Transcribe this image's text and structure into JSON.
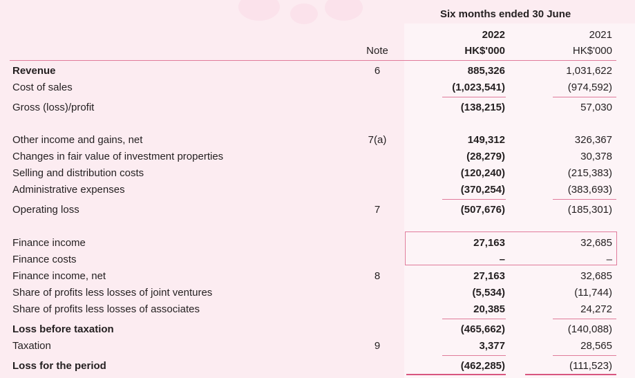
{
  "header": {
    "period": "Six months ended 30 June",
    "note_label": "Note",
    "col_2022_year": "2022",
    "col_2022_unit": "HK$'000",
    "col_2021_year": "2021",
    "col_2021_unit": "HK$'000"
  },
  "rows": [
    {
      "label": "Revenue",
      "note": "6",
      "v2022": "885,326",
      "v2021": "1,031,622"
    },
    {
      "label": "Cost of sales",
      "note": "",
      "v2022": "(1,023,541)",
      "v2021": "(974,592)"
    },
    {
      "label": "Gross (loss)/profit",
      "note": "",
      "v2022": "(138,215)",
      "v2021": "57,030"
    },
    {
      "label": "Other income and gains, net",
      "note": "7(a)",
      "v2022": "149,312",
      "v2021": "326,367"
    },
    {
      "label": "Changes in fair value of investment properties",
      "note": "",
      "v2022": "(28,279)",
      "v2021": "30,378"
    },
    {
      "label": "Selling and distribution costs",
      "note": "",
      "v2022": "(120,240)",
      "v2021": "(215,383)"
    },
    {
      "label": "Administrative expenses",
      "note": "",
      "v2022": "(370,254)",
      "v2021": "(383,693)"
    },
    {
      "label": "Operating loss",
      "note": "7",
      "v2022": "(507,676)",
      "v2021": "(185,301)"
    },
    {
      "label": "Finance income",
      "note": "",
      "v2022": "27,163",
      "v2021": "32,685"
    },
    {
      "label": "Finance costs",
      "note": "",
      "v2022": "–",
      "v2021": "–"
    },
    {
      "label": "Finance income, net",
      "note": "8",
      "v2022": "27,163",
      "v2021": "32,685"
    },
    {
      "label": "Share of profits less losses of joint ventures",
      "note": "",
      "v2022": "(5,534)",
      "v2021": "(11,744)"
    },
    {
      "label": "Share of profits less losses of associates",
      "note": "",
      "v2022": "20,385",
      "v2021": "24,272"
    },
    {
      "label": "Loss before taxation",
      "note": "",
      "v2022": "(465,662)",
      "v2021": "(140,088)"
    },
    {
      "label": "Taxation",
      "note": "9",
      "v2022": "3,377",
      "v2021": "28,565"
    },
    {
      "label": "Loss for the period",
      "note": "",
      "v2022": "(462,285)",
      "v2021": "(111,523)"
    }
  ]
}
